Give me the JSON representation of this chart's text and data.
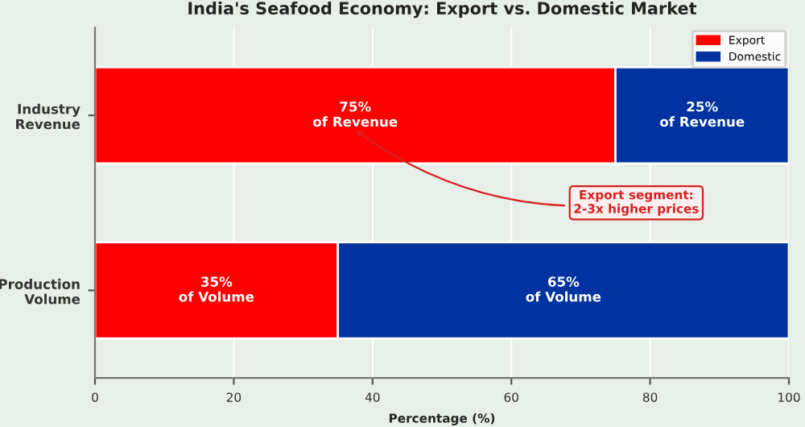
{
  "chart_data": {
    "type": "bar",
    "orientation": "horizontal",
    "stacked": true,
    "title": "India's Seafood Economy: Export vs. Domestic Market",
    "xlabel": "Percentage (%)",
    "categories": [
      "Industry\nRevenue",
      "Production\nVolume"
    ],
    "series": [
      {
        "name": "Export",
        "color": "#ff0000",
        "values": [
          75,
          35
        ],
        "value_labels": [
          "75%\nof Revenue",
          "35%\nof Volume"
        ]
      },
      {
        "name": "Domestic",
        "color": "#0033a0",
        "values": [
          25,
          65
        ],
        "value_labels": [
          "25%\nof Revenue",
          "65%\nof Volume"
        ]
      }
    ],
    "xlim": [
      0,
      100
    ],
    "xticks": [
      0,
      20,
      40,
      60,
      80,
      100
    ],
    "grid": "x",
    "legend": "top right",
    "annotations": [
      "Export segment:\n2-3x higher prices"
    ]
  }
}
